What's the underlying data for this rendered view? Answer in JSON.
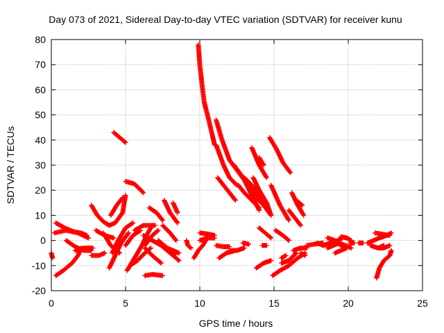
{
  "chart_data": {
    "type": "scatter",
    "title": "Day 073 of 2021, Sidereal Day-to-day VTEC variation (SDTVAR) for receiver kunu",
    "xlabel": "GPS time / hours",
    "ylabel": "SDTVAR / TECUs",
    "xlim": [
      0,
      25
    ],
    "ylim": [
      -20,
      80
    ],
    "xticks": [
      0,
      5,
      10,
      15,
      20,
      25
    ],
    "yticks": [
      -20,
      -10,
      0,
      10,
      20,
      30,
      40,
      50,
      60,
      70,
      80
    ],
    "grid": true,
    "marker": "plus",
    "color": "#ff0000",
    "tracks": [
      {
        "points": [
          [
            0.0,
            -5
          ],
          [
            0.08,
            -7
          ]
        ]
      },
      {
        "points": [
          [
            0.3,
            7
          ],
          [
            0.9,
            5
          ],
          [
            1.5,
            3.5
          ],
          [
            2.0,
            3
          ],
          [
            2.4,
            2
          ]
        ]
      },
      {
        "points": [
          [
            0.2,
            3
          ],
          [
            1.0,
            4
          ],
          [
            1.8,
            3
          ],
          [
            2.5,
            1
          ]
        ]
      },
      {
        "points": [
          [
            0.3,
            -14
          ],
          [
            0.8,
            -12
          ],
          [
            1.4,
            -9
          ],
          [
            1.8,
            -6
          ],
          [
            2.0,
            -3
          ]
        ]
      },
      {
        "points": [
          [
            1.0,
            0
          ],
          [
            1.6,
            -2.5
          ],
          [
            2.2,
            -4
          ],
          [
            2.7,
            -4
          ]
        ]
      },
      {
        "points": [
          [
            1.6,
            -4
          ],
          [
            2.2,
            -3
          ],
          [
            2.8,
            -3
          ]
        ]
      },
      {
        "points": [
          [
            2.7,
            14
          ],
          [
            3.1,
            10
          ],
          [
            3.5,
            7.5
          ],
          [
            3.9,
            6
          ],
          [
            4.3,
            7
          ],
          [
            4.8,
            11
          ],
          [
            5.0,
            18
          ]
        ]
      },
      {
        "points": [
          [
            2.7,
            -6
          ],
          [
            3.2,
            -6
          ],
          [
            3.6,
            -5
          ]
        ]
      },
      {
        "points": [
          [
            3.0,
            4
          ],
          [
            3.6,
            2
          ],
          [
            4.2,
            1
          ]
        ]
      },
      {
        "points": [
          [
            3.5,
            3
          ],
          [
            4.0,
            -2
          ],
          [
            4.6,
            -5
          ]
        ]
      },
      {
        "points": [
          [
            4.2,
            43
          ],
          [
            4.6,
            41
          ],
          [
            5.0,
            39
          ]
        ]
      },
      {
        "points": [
          [
            4.0,
            10
          ],
          [
            4.4,
            14
          ],
          [
            4.8,
            17
          ]
        ]
      },
      {
        "points": [
          [
            3.9,
            -11
          ],
          [
            4.3,
            -6
          ],
          [
            4.7,
            -1
          ],
          [
            5.2,
            3
          ]
        ]
      },
      {
        "points": [
          [
            4.1,
            -5
          ],
          [
            4.5,
            0
          ],
          [
            5.0,
            5
          ],
          [
            5.5,
            7
          ]
        ]
      },
      {
        "points": [
          [
            5.0,
            23.5
          ],
          [
            5.6,
            22.5
          ],
          [
            6.2,
            19
          ]
        ]
      },
      {
        "points": [
          [
            5.1,
            -12
          ],
          [
            5.6,
            -7
          ],
          [
            6.1,
            -2
          ],
          [
            6.5,
            3
          ],
          [
            6.8,
            6
          ]
        ]
      },
      {
        "points": [
          [
            5.3,
            -10
          ],
          [
            5.8,
            -8
          ],
          [
            6.3,
            -5
          ],
          [
            6.7,
            -3
          ]
        ]
      },
      {
        "points": [
          [
            5.0,
            -2
          ],
          [
            5.5,
            2
          ],
          [
            6.0,
            4
          ]
        ]
      },
      {
        "points": [
          [
            5.6,
            4
          ],
          [
            6.2,
            6
          ],
          [
            7.0,
            6
          ]
        ]
      },
      {
        "points": [
          [
            6.3,
            -14
          ],
          [
            6.8,
            -13.5
          ],
          [
            7.5,
            -14
          ]
        ]
      },
      {
        "points": [
          [
            6.2,
            2
          ],
          [
            6.8,
            0
          ],
          [
            7.4,
            -2
          ],
          [
            8.0,
            -5
          ],
          [
            8.6,
            -8
          ]
        ]
      },
      {
        "points": [
          [
            6.3,
            -2
          ],
          [
            6.8,
            2
          ],
          [
            7.2,
            4
          ]
        ]
      },
      {
        "points": [
          [
            6.3,
            -3
          ],
          [
            6.8,
            -6
          ],
          [
            7.4,
            -9
          ]
        ]
      },
      {
        "points": [
          [
            6.6,
            13
          ],
          [
            7.1,
            11
          ],
          [
            7.5,
            8
          ]
        ]
      },
      {
        "points": [
          [
            7.5,
            6
          ],
          [
            8.0,
            3
          ],
          [
            8.4,
            0
          ]
        ]
      },
      {
        "points": [
          [
            7.6,
            16
          ],
          [
            8.0,
            11
          ],
          [
            8.5,
            7
          ]
        ]
      },
      {
        "points": [
          [
            7.2,
            0
          ],
          [
            7.8,
            -3
          ],
          [
            8.4,
            -5
          ]
        ]
      },
      {
        "points": [
          [
            8.2,
            15
          ],
          [
            8.5,
            11
          ]
        ]
      },
      {
        "points": [
          [
            7.8,
            -3
          ],
          [
            8.6,
            -5
          ]
        ]
      },
      {
        "points": [
          [
            9.1,
            0
          ],
          [
            9.2,
            -2
          ],
          [
            9.4,
            -3
          ]
        ]
      },
      {
        "points": [
          [
            9.6,
            -7
          ],
          [
            9.9,
            -4
          ],
          [
            10.2,
            -2
          ],
          [
            10.5,
            1
          ]
        ]
      },
      {
        "points": [
          [
            9.9,
            78
          ],
          [
            10.0,
            70
          ],
          [
            10.15,
            62
          ],
          [
            10.3,
            55
          ],
          [
            10.6,
            48
          ],
          [
            11.0,
            38
          ]
        ]
      },
      {
        "points": [
          [
            10.0,
            3
          ],
          [
            10.6,
            2.5
          ],
          [
            11.0,
            2
          ]
        ]
      },
      {
        "points": [
          [
            10.0,
            0
          ],
          [
            10.5,
            1
          ],
          [
            11.0,
            1
          ]
        ]
      },
      {
        "points": [
          [
            11.1,
            48
          ],
          [
            11.5,
            40
          ],
          [
            12.0,
            32
          ],
          [
            12.5,
            28
          ],
          [
            13.0,
            24
          ],
          [
            13.5,
            18
          ],
          [
            14.0,
            12
          ]
        ]
      },
      {
        "points": [
          [
            11.2,
            25
          ],
          [
            11.6,
            22
          ],
          [
            12.0,
            19
          ],
          [
            12.4,
            16
          ]
        ]
      },
      {
        "points": [
          [
            11.1,
            38
          ],
          [
            11.6,
            30
          ],
          [
            12.0,
            25
          ],
          [
            12.5,
            22
          ]
        ]
      },
      {
        "points": [
          [
            11.1,
            -2
          ],
          [
            11.6,
            -2.5
          ],
          [
            12.0,
            -2.5
          ]
        ]
      },
      {
        "points": [
          [
            11.3,
            -7
          ],
          [
            11.8,
            -5
          ],
          [
            12.4,
            -4
          ]
        ]
      },
      {
        "points": [
          [
            12.0,
            -4
          ],
          [
            12.5,
            -4
          ],
          [
            13.0,
            -3
          ]
        ]
      },
      {
        "points": [
          [
            12.3,
            30
          ],
          [
            12.8,
            26
          ],
          [
            13.3,
            22
          ],
          [
            13.8,
            18
          ],
          [
            14.2,
            15
          ]
        ]
      },
      {
        "points": [
          [
            12.6,
            22
          ],
          [
            13.0,
            19
          ],
          [
            13.5,
            16
          ],
          [
            14.0,
            13
          ]
        ]
      },
      {
        "points": [
          [
            13.0,
            25
          ],
          [
            13.5,
            22
          ],
          [
            14.0,
            18
          ],
          [
            14.5,
            13
          ]
        ]
      },
      {
        "points": [
          [
            12.9,
            -1
          ],
          [
            13.3,
            -1.5
          ]
        ]
      },
      {
        "points": [
          [
            13.5,
            37
          ],
          [
            14.0,
            30
          ],
          [
            14.5,
            25
          ]
        ]
      },
      {
        "points": [
          [
            13.6,
            25
          ],
          [
            14.0,
            20
          ],
          [
            14.5,
            15
          ],
          [
            14.8,
            10
          ]
        ]
      },
      {
        "points": [
          [
            13.8,
            17
          ],
          [
            14.3,
            14
          ],
          [
            14.8,
            10
          ]
        ]
      },
      {
        "points": [
          [
            14.0,
            33
          ],
          [
            14.3,
            30
          ]
        ]
      },
      {
        "points": [
          [
            14.2,
            -2
          ],
          [
            14.5,
            -2
          ]
        ]
      },
      {
        "points": [
          [
            13.8,
            -11
          ],
          [
            14.3,
            -9
          ],
          [
            14.8,
            -8
          ]
        ]
      },
      {
        "points": [
          [
            14.0,
            5
          ],
          [
            14.4,
            3
          ],
          [
            14.8,
            1
          ]
        ]
      },
      {
        "points": [
          [
            14.7,
            41
          ],
          [
            15.2,
            36
          ],
          [
            15.6,
            31
          ],
          [
            16.1,
            27
          ]
        ]
      },
      {
        "points": [
          [
            14.8,
            22
          ],
          [
            15.4,
            14
          ],
          [
            16.0,
            8
          ]
        ]
      },
      {
        "points": [
          [
            14.9,
            -14
          ],
          [
            15.4,
            -12
          ],
          [
            16.0,
            -10
          ],
          [
            16.6,
            -7
          ],
          [
            17.1,
            -5
          ]
        ]
      },
      {
        "points": [
          [
            15.1,
            4
          ],
          [
            15.6,
            2
          ],
          [
            16.0,
            0
          ]
        ]
      },
      {
        "points": [
          [
            15.5,
            -9
          ],
          [
            16.0,
            -8
          ],
          [
            16.5,
            -5
          ]
        ]
      },
      {
        "points": [
          [
            15.5,
            -7
          ],
          [
            15.8,
            -6
          ]
        ]
      },
      {
        "points": [
          [
            16.2,
            19
          ],
          [
            16.6,
            14
          ],
          [
            17.0,
            10
          ]
        ]
      },
      {
        "points": [
          [
            16.0,
            12
          ],
          [
            16.4,
            9
          ],
          [
            16.8,
            6
          ]
        ]
      },
      {
        "points": [
          [
            16.3,
            -4
          ],
          [
            16.8,
            -3
          ],
          [
            17.2,
            -3
          ]
        ]
      },
      {
        "points": [
          [
            16.5,
            16
          ],
          [
            16.9,
            14
          ]
        ]
      },
      {
        "points": [
          [
            16.8,
            -5
          ],
          [
            17.1,
            -6
          ]
        ]
      },
      {
        "points": [
          [
            17.2,
            -2
          ],
          [
            17.7,
            -1.5
          ],
          [
            18.3,
            -1
          ]
        ]
      },
      {
        "points": [
          [
            17.9,
            -1
          ],
          [
            18.3,
            -2
          ]
        ]
      },
      {
        "points": [
          [
            18.3,
            -2
          ],
          [
            18.8,
            -1
          ],
          [
            19.3,
            0
          ],
          [
            19.6,
            1
          ]
        ]
      },
      {
        "points": [
          [
            18.6,
            1
          ],
          [
            19.1,
            0
          ],
          [
            19.5,
            -2
          ],
          [
            19.9,
            -3
          ]
        ]
      },
      {
        "points": [
          [
            18.6,
            -3
          ],
          [
            19.0,
            -2
          ],
          [
            19.4,
            -1
          ]
        ]
      },
      {
        "points": [
          [
            19.1,
            -5
          ],
          [
            19.5,
            -4
          ],
          [
            19.9,
            -3
          ]
        ]
      },
      {
        "points": [
          [
            19.5,
            1.5
          ],
          [
            19.9,
            1
          ],
          [
            20.2,
            0
          ]
        ]
      },
      {
        "points": [
          [
            19.4,
            -1
          ],
          [
            19.8,
            -2
          ],
          [
            20.2,
            -3
          ]
        ]
      },
      {
        "points": [
          [
            20.1,
            -1
          ],
          [
            20.4,
            -1
          ]
        ]
      },
      {
        "points": [
          [
            20.7,
            -1
          ],
          [
            21.0,
            -1
          ]
        ]
      },
      {
        "points": [
          [
            21.3,
            -1
          ],
          [
            21.7,
            0
          ],
          [
            22.1,
            1
          ],
          [
            22.6,
            2
          ],
          [
            22.9,
            3
          ]
        ]
      },
      {
        "points": [
          [
            21.5,
            -2
          ],
          [
            22.0,
            -3
          ],
          [
            22.4,
            -2
          ]
        ]
      },
      {
        "points": [
          [
            21.8,
            3
          ],
          [
            22.3,
            2.5
          ],
          [
            22.8,
            2
          ]
        ]
      },
      {
        "points": [
          [
            21.9,
            -15
          ],
          [
            22.1,
            -11
          ],
          [
            22.4,
            -8
          ],
          [
            22.8,
            -6
          ],
          [
            22.9,
            -4
          ]
        ]
      },
      {
        "points": [
          [
            22.0,
            -3
          ],
          [
            22.4,
            -3
          ],
          [
            22.8,
            -2
          ]
        ]
      }
    ]
  }
}
